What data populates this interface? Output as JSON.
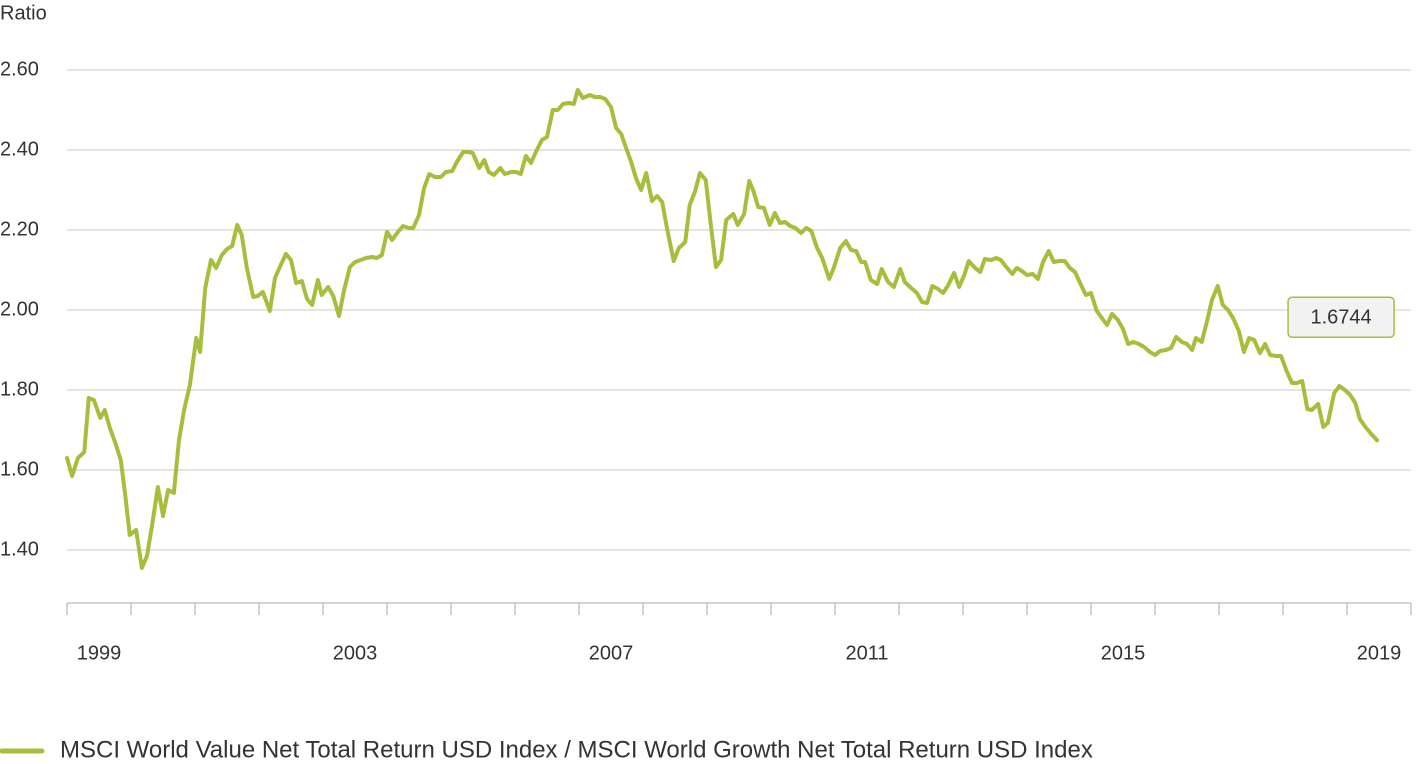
{
  "chart_data": {
    "type": "line",
    "y_label": "Ratio",
    "x": [
      1999.0,
      1999.08,
      1999.17,
      1999.27,
      1999.34,
      1999.42,
      1999.52,
      1999.59,
      1999.67,
      1999.75,
      1999.84,
      1999.91,
      1999.98,
      2000.08,
      2000.17,
      2000.25,
      2000.33,
      2000.42,
      2000.5,
      2000.58,
      2000.67,
      2000.75,
      2000.83,
      2000.92,
      2001.02,
      2001.08,
      2001.16,
      2001.25,
      2001.33,
      2001.42,
      2001.5,
      2001.58,
      2001.66,
      2001.73,
      2001.81,
      2001.91,
      2001.98,
      2002.06,
      2002.17,
      2002.25,
      2002.34,
      2002.42,
      2002.5,
      2002.58,
      2002.67,
      2002.75,
      2002.83,
      2002.92,
      2002.98,
      2003.08,
      2003.16,
      2003.25,
      2003.33,
      2003.42,
      2003.5,
      2003.59,
      2003.67,
      2003.77,
      2003.84,
      2003.92,
      2004.0,
      2004.08,
      2004.17,
      2004.25,
      2004.34,
      2004.41,
      2004.5,
      2004.58,
      2004.66,
      2004.75,
      2004.84,
      2004.92,
      2005.02,
      2005.09,
      2005.19,
      2005.27,
      2005.34,
      2005.44,
      2005.52,
      2005.59,
      2005.67,
      2005.77,
      2005.84,
      2005.94,
      2006.02,
      2006.09,
      2006.17,
      2006.25,
      2006.34,
      2006.42,
      2006.5,
      2006.59,
      2006.67,
      2006.75,
      2006.84,
      2006.92,
      2006.98,
      2007.06,
      2007.17,
      2007.25,
      2007.33,
      2007.41,
      2007.5,
      2007.58,
      2007.66,
      2007.73,
      2007.81,
      2007.89,
      2007.97,
      2008.05,
      2008.14,
      2008.22,
      2008.3,
      2008.38,
      2008.48,
      2008.56,
      2008.66,
      2008.73,
      2008.81,
      2008.89,
      2008.98,
      2009.06,
      2009.14,
      2009.22,
      2009.3,
      2009.41,
      2009.48,
      2009.58,
      2009.66,
      2009.72,
      2009.8,
      2009.89,
      2009.98,
      2010.06,
      2010.14,
      2010.22,
      2010.3,
      2010.38,
      2010.47,
      2010.55,
      2010.63,
      2010.72,
      2010.8,
      2010.91,
      2010.98,
      2011.08,
      2011.17,
      2011.25,
      2011.33,
      2011.41,
      2011.47,
      2011.56,
      2011.66,
      2011.73,
      2011.83,
      2011.92,
      2012.02,
      2012.09,
      2012.19,
      2012.28,
      2012.36,
      2012.44,
      2012.52,
      2012.61,
      2012.69,
      2012.77,
      2012.86,
      2012.94,
      2013.02,
      2013.09,
      2013.19,
      2013.27,
      2013.34,
      2013.44,
      2013.52,
      2013.59,
      2013.69,
      2013.77,
      2013.84,
      2013.92,
      2014.0,
      2014.09,
      2014.17,
      2014.25,
      2014.34,
      2014.42,
      2014.5,
      2014.59,
      2014.67,
      2014.75,
      2014.83,
      2014.92,
      2015.0,
      2015.09,
      2015.17,
      2015.25,
      2015.33,
      2015.42,
      2015.5,
      2015.58,
      2015.66,
      2015.75,
      2015.83,
      2015.92,
      2016.0,
      2016.08,
      2016.17,
      2016.25,
      2016.33,
      2016.42,
      2016.5,
      2016.58,
      2016.64,
      2016.73,
      2016.81,
      2016.89,
      2016.98,
      2017.06,
      2017.14,
      2017.22,
      2017.31,
      2017.39,
      2017.47,
      2017.55,
      2017.64,
      2017.72,
      2017.8,
      2017.89,
      2017.97,
      2018.05,
      2018.14,
      2018.22,
      2018.3,
      2018.38,
      2018.45,
      2018.55,
      2018.63,
      2018.7,
      2018.8,
      2018.88,
      2018.95,
      2019.05,
      2019.13,
      2019.2,
      2019.3,
      2019.38,
      2019.47
    ],
    "series": [
      {
        "name": "MSCI World Value Net Total Return USD Index / MSCI World Growth Net Total Return USD Index",
        "color": "#a5bf3d",
        "values": [
          1.63,
          1.585,
          1.63,
          1.645,
          1.78,
          1.775,
          1.73,
          1.75,
          1.705,
          1.67,
          1.625,
          1.5375,
          1.4375,
          1.45,
          1.355,
          1.385,
          1.4625,
          1.5575,
          1.485,
          1.55,
          1.5425,
          1.675,
          1.75,
          1.8125,
          1.93,
          1.895,
          2.055,
          2.125,
          2.105,
          2.1375,
          2.1525,
          2.16,
          2.2125,
          2.1875,
          2.105,
          2.0325,
          2.035,
          2.045,
          1.9975,
          2.08,
          2.1125,
          2.14,
          2.125,
          2.0675,
          2.0725,
          2.0275,
          2.0125,
          2.075,
          2.0375,
          2.0575,
          2.035,
          1.985,
          2.05,
          2.1075,
          2.12,
          2.125,
          2.13,
          2.1325,
          2.13,
          2.1375,
          2.195,
          2.175,
          2.195,
          2.21,
          2.205,
          2.205,
          2.2375,
          2.305,
          2.34,
          2.3325,
          2.3325,
          2.345,
          2.3475,
          2.37,
          2.395,
          2.395,
          2.3925,
          2.355,
          2.375,
          2.345,
          2.3375,
          2.355,
          2.34,
          2.345,
          2.345,
          2.34,
          2.385,
          2.3675,
          2.4,
          2.425,
          2.4325,
          2.5,
          2.5,
          2.515,
          2.5175,
          2.515,
          2.55,
          2.53,
          2.5375,
          2.5325,
          2.5325,
          2.5275,
          2.5075,
          2.455,
          2.44,
          2.4075,
          2.3725,
          2.33,
          2.3,
          2.3425,
          2.2725,
          2.285,
          2.27,
          2.2,
          2.1225,
          2.155,
          2.17,
          2.2625,
          2.295,
          2.3425,
          2.325,
          2.2125,
          2.1075,
          2.125,
          2.225,
          2.24,
          2.2125,
          2.24,
          2.3225,
          2.3,
          2.2575,
          2.255,
          2.2125,
          2.2425,
          2.2175,
          2.22,
          2.21,
          2.205,
          2.1925,
          2.205,
          2.1975,
          2.155,
          2.13,
          2.0775,
          2.105,
          2.155,
          2.1725,
          2.15,
          2.1475,
          2.12,
          2.12,
          2.075,
          2.065,
          2.1025,
          2.07,
          2.0575,
          2.1025,
          2.07,
          2.055,
          2.0425,
          2.02,
          2.0175,
          2.06,
          2.0525,
          2.0425,
          2.0625,
          2.0925,
          2.0575,
          2.0875,
          2.1225,
          2.105,
          2.095,
          2.1275,
          2.125,
          2.13,
          2.125,
          2.105,
          2.09,
          2.105,
          2.0975,
          2.0875,
          2.09,
          2.0775,
          2.12,
          2.1475,
          2.12,
          2.1225,
          2.1225,
          2.105,
          2.095,
          2.0675,
          2.0375,
          2.0425,
          1.9975,
          1.98,
          1.9625,
          1.99,
          1.975,
          1.9525,
          1.915,
          1.92,
          1.915,
          1.9075,
          1.895,
          1.8875,
          1.8975,
          1.9,
          1.905,
          1.9325,
          1.92,
          1.915,
          1.9,
          1.93,
          1.92,
          1.97,
          2.025,
          2.06,
          2.0125,
          2.0,
          1.98,
          1.9475,
          1.895,
          1.93,
          1.925,
          1.8925,
          1.915,
          1.8875,
          1.885,
          1.885,
          1.85,
          1.8175,
          1.8175,
          1.8225,
          1.7525,
          1.75,
          1.765,
          1.7075,
          1.7175,
          1.7925,
          1.81,
          1.8025,
          1.7875,
          1.7675,
          1.7275,
          1.705,
          1.69,
          1.6744
        ]
      }
    ],
    "xlim": [
      1999,
      2020
    ],
    "xticks": [
      {
        "value": 1999.5,
        "label": "1999"
      },
      {
        "value": 2003.5,
        "label": "2003"
      },
      {
        "value": 2007.5,
        "label": "2007"
      },
      {
        "value": 2011.5,
        "label": "2011"
      },
      {
        "value": 2015.5,
        "label": "2015"
      },
      {
        "value": 2019.5,
        "label": "2019"
      }
    ],
    "xtick_marks": [
      1999,
      2000,
      2001,
      2002,
      2003,
      2004,
      2005,
      2006,
      2007,
      2008,
      2009,
      2010,
      2011,
      2012,
      2013,
      2014,
      2015,
      2016,
      2017,
      2018,
      2019,
      2020
    ],
    "ylim": [
      1.27,
      2.65
    ],
    "yticks": [
      {
        "value": 1.4,
        "label": "1.40"
      },
      {
        "value": 1.6,
        "label": "1.60"
      },
      {
        "value": 1.8,
        "label": "1.80"
      },
      {
        "value": 2.0,
        "label": "2.00"
      },
      {
        "value": 2.2,
        "label": "2.20"
      },
      {
        "value": 2.4,
        "label": "2.40"
      },
      {
        "value": 2.6,
        "label": "2.60"
      }
    ],
    "grid": true,
    "legend": "bottom-left"
  }
}
